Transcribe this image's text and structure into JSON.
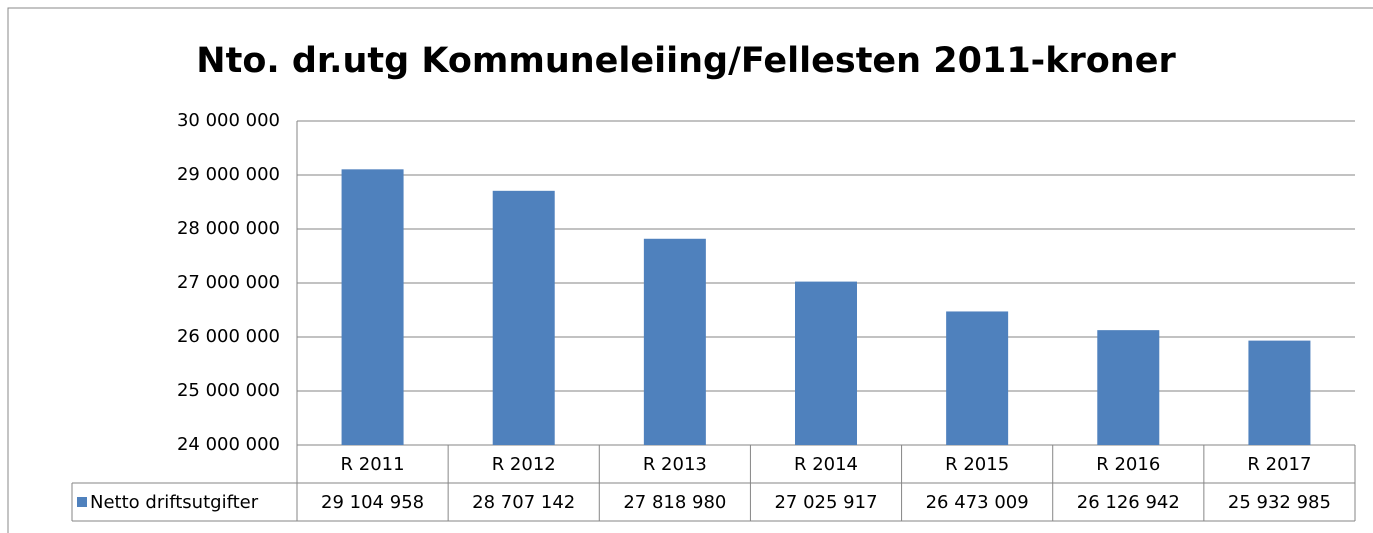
{
  "chart_data": {
    "type": "bar",
    "title": "Nto. dr.utg Kommuneleiing/Fellesten 2011-kroner",
    "categories": [
      "R 2011",
      "R 2012",
      "R 2013",
      "R 2014",
      "R 2015",
      "R 2016",
      "R 2017"
    ],
    "series": [
      {
        "name": "Netto driftsutgifter",
        "color": "#4f81bd",
        "values": [
          29104958,
          28707142,
          27818980,
          27025917,
          26473009,
          26126942,
          25932985
        ],
        "value_labels": [
          "29 104 958",
          "28 707 142",
          "27 818 980",
          "27 025 917",
          "26 473 009",
          "26 126 942",
          "25 932 985"
        ]
      }
    ],
    "ylim": [
      24000000,
      30000000
    ],
    "yticks": [
      {
        "value": 24000000,
        "label": "24 000 000"
      },
      {
        "value": 25000000,
        "label": "25 000 000"
      },
      {
        "value": 26000000,
        "label": "26 000 000"
      },
      {
        "value": 27000000,
        "label": "27 000 000"
      },
      {
        "value": 28000000,
        "label": "28 000 000"
      },
      {
        "value": 29000000,
        "label": "29 000 000"
      },
      {
        "value": 30000000,
        "label": "30 000 000"
      }
    ],
    "grid": true
  }
}
